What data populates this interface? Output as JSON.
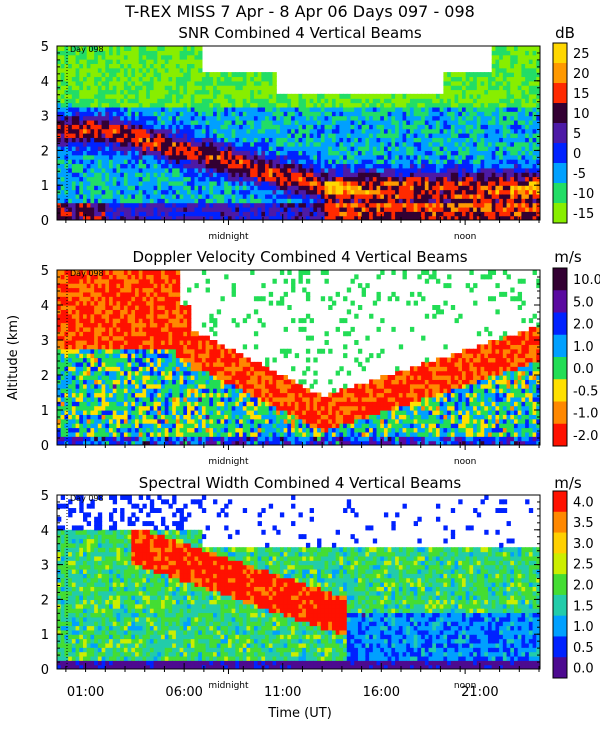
{
  "header": {
    "title": "T-REX MISS     7 Apr -  8 Apr 06 Days 097 - 098"
  },
  "chart_data": [
    {
      "type": "heatmap",
      "id": "snr",
      "title": "SNR Combined 4 Vertical Beams",
      "ylabel": "",
      "xlabel": "",
      "units": "dB",
      "ylim": [
        0,
        5
      ],
      "yticks": [
        "0",
        "1",
        "2",
        "3",
        "4",
        "5"
      ],
      "day_label": "Day 098",
      "x_markers": [
        "midnight",
        "noon"
      ],
      "colorbar": {
        "labels": [
          "25",
          "20",
          "15",
          "10",
          "5",
          "0",
          "-5",
          "-10",
          "-15"
        ],
        "colors": [
          "#ffd700",
          "#ff9900",
          "#ff2a00",
          "#330033",
          "#4d1aa6",
          "#0022ff",
          "#00a0ff",
          "#22dd66",
          "#88ee00"
        ]
      }
    },
    {
      "type": "heatmap",
      "id": "doppler",
      "title": "Doppler Velocity Combined 4 Vertical Beams",
      "ylabel": "Altitude (km)",
      "xlabel": "",
      "units": "m/s",
      "ylim": [
        0,
        5
      ],
      "yticks": [
        "0",
        "1",
        "2",
        "3",
        "4",
        "5"
      ],
      "day_label": "Day 098",
      "x_markers": [
        "midnight",
        "noon"
      ],
      "colorbar": {
        "labels": [
          "10.0",
          "5.0",
          "2.0",
          "1.0",
          "0.0",
          "-0.5",
          "-1.0",
          "-2.0"
        ],
        "colors": [
          "#330033",
          "#5a0aa0",
          "#0022ff",
          "#00a0ff",
          "#22dd55",
          "#ffe000",
          "#ff8800",
          "#ff1100"
        ]
      }
    },
    {
      "type": "heatmap",
      "id": "width",
      "title": "Spectral Width Combined 4 Vertical Beams",
      "ylabel": "",
      "xlabel": "Time (UT)",
      "units": "m/s",
      "ylim": [
        0,
        5
      ],
      "yticks": [
        "0",
        "1",
        "2",
        "3",
        "4",
        "5"
      ],
      "day_label": "Day 098",
      "x_markers": [
        "midnight",
        "noon"
      ],
      "xticks": [
        "01:00",
        "06:00",
        "11:00",
        "16:00",
        "21:00"
      ],
      "colorbar": {
        "labels": [
          "4.0",
          "3.5",
          "3.0",
          "2.5",
          "2.0",
          "1.5",
          "1.0",
          "0.5",
          "0.0"
        ],
        "colors": [
          "#ff1100",
          "#ff8800",
          "#ffd000",
          "#ccee00",
          "#44dd33",
          "#22ccaa",
          "#00a0ff",
          "#0022ff",
          "#4d0a90"
        ]
      }
    }
  ]
}
